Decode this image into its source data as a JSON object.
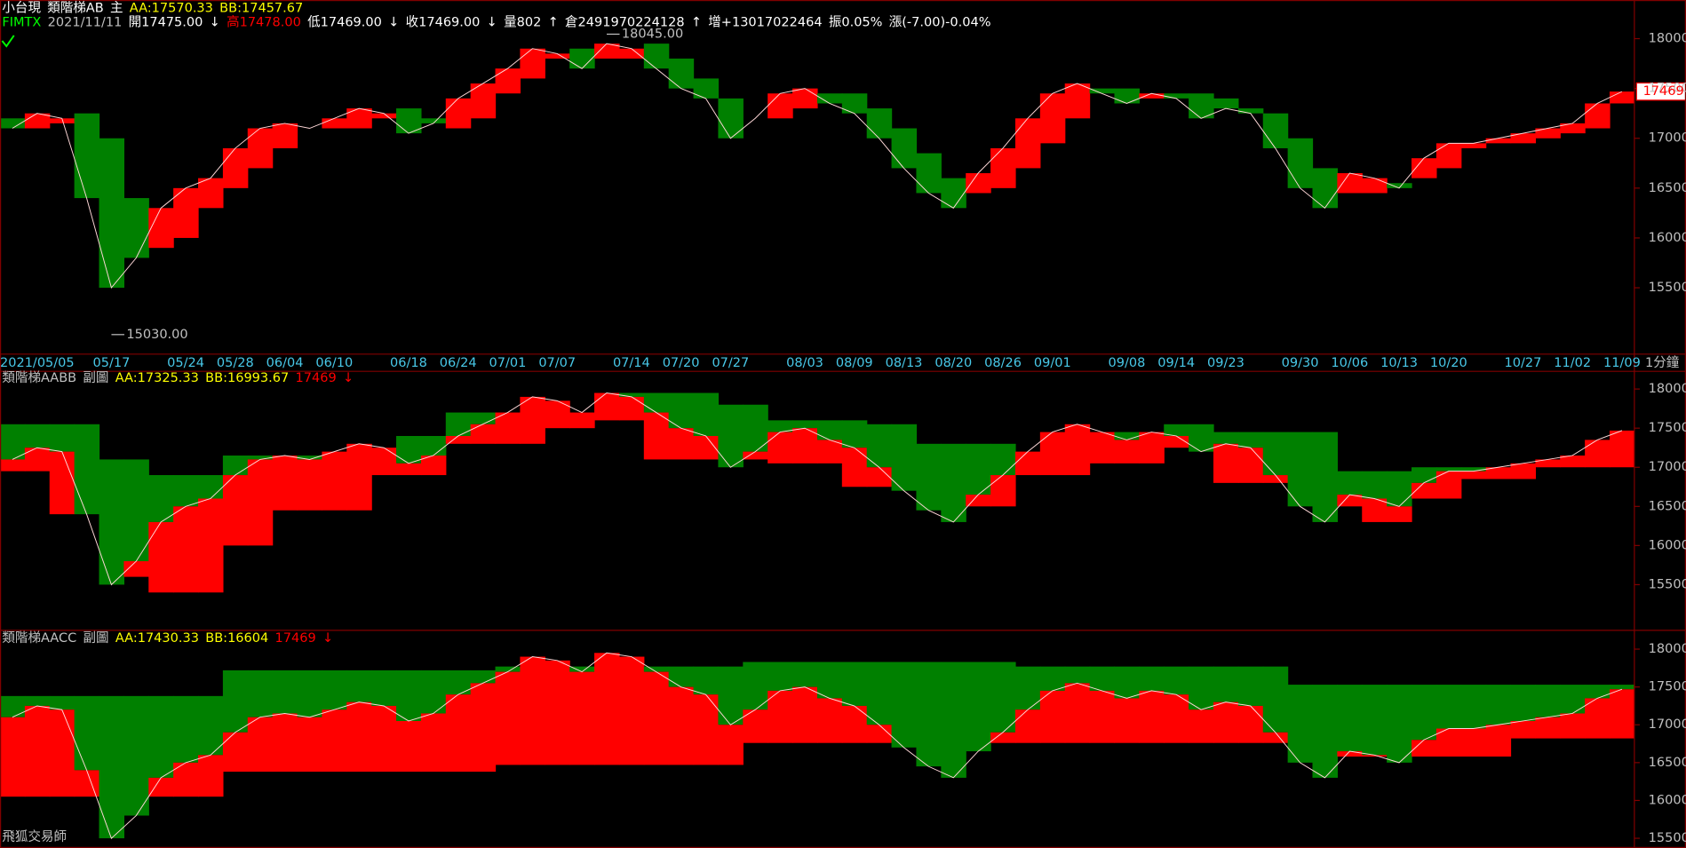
{
  "chart_data": [
    {
      "type": "ladder",
      "header": [
        [
          {
            "text": "小台現",
            "color": "#ffffff"
          },
          {
            "text": "類階梯AB",
            "color": "#ffffff"
          },
          {
            "text": "主",
            "color": "#ffffff"
          },
          {
            "text": "AA:17570.33",
            "color": "#ffff00"
          },
          {
            "text": "BB:17457.67",
            "color": "#ffff00"
          }
        ],
        [
          {
            "text": "FIMTX",
            "color": "#00ff00"
          },
          {
            "text": "2021/11/11",
            "color": "#c0c0c0"
          },
          {
            "text": "開17475.00",
            "color": "#ffffff"
          },
          {
            "text": "↓",
            "color": "#ffffff"
          },
          {
            "text": "高17478.00",
            "color": "#ff0000"
          },
          {
            "text": "低17469.00",
            "color": "#ffffff"
          },
          {
            "text": "↓",
            "color": "#ffffff"
          },
          {
            "text": "收17469.00",
            "color": "#ffffff"
          },
          {
            "text": "↓",
            "color": "#ffffff"
          },
          {
            "text": "量802",
            "color": "#ffffff"
          },
          {
            "text": "↑",
            "color": "#ffffff"
          },
          {
            "text": "倉2491970224128",
            "color": "#ffffff"
          },
          {
            "text": "↑",
            "color": "#ffffff"
          },
          {
            "text": "增+13017022464",
            "color": "#ffffff"
          },
          {
            "text": "振0.05%",
            "color": "#ffffff"
          },
          {
            "text": "漲(-7.00)-0.04%",
            "color": "#ffffff"
          }
        ]
      ],
      "categories": [
        null,
        "2021/05/05",
        null,
        null,
        "05/17",
        null,
        null,
        "05/24",
        null,
        "05/28",
        null,
        "06/04",
        null,
        "06/10",
        null,
        null,
        "06/18",
        null,
        "06/24",
        null,
        "07/01",
        null,
        "07/07",
        null,
        null,
        "07/14",
        null,
        "07/20",
        null,
        "07/27",
        null,
        null,
        "08/03",
        null,
        "08/09",
        null,
        "08/13",
        null,
        "08/20",
        null,
        "08/26",
        null,
        "09/01",
        null,
        null,
        "09/08",
        null,
        "09/14",
        null,
        "09/23",
        null,
        null,
        "09/30",
        null,
        "10/06",
        null,
        "10/13",
        null,
        "10/20",
        null,
        null,
        "10/27",
        null,
        "11/02",
        null,
        "11/09"
      ],
      "timeframe": "1分鐘",
      "close": [
        17100,
        17250,
        17200,
        16400,
        15500,
        15800,
        16300,
        16500,
        16600,
        16900,
        17100,
        17150,
        17100,
        17200,
        17300,
        17250,
        17050,
        17150,
        17400,
        17550,
        17700,
        17900,
        17850,
        17700,
        17950,
        17900,
        17700,
        17500,
        17400,
        17000,
        17200,
        17450,
        17500,
        17350,
        17250,
        17000,
        16700,
        16450,
        16300,
        16650,
        16900,
        17200,
        17450,
        17550,
        17450,
        17350,
        17450,
        17400,
        17200,
        17300,
        17250,
        16900,
        16500,
        16300,
        16650,
        16600,
        16500,
        16800,
        16950,
        16950,
        17000,
        17050,
        17100,
        17150,
        17350,
        17469
      ],
      "ladder": [
        17200,
        17100,
        17150,
        17250,
        17000,
        16400,
        15900,
        16000,
        16300,
        16500,
        16700,
        16900,
        17100,
        17100,
        17100,
        17200,
        17300,
        17200,
        17100,
        17200,
        17450,
        17600,
        17800,
        17900,
        17800,
        17800,
        17950,
        17800,
        17600,
        17400,
        17200,
        17200,
        17300,
        17450,
        17450,
        17300,
        17100,
        16850,
        16600,
        16450,
        16500,
        16700,
        16950,
        17200,
        17500,
        17500,
        17400,
        17450,
        17450,
        17400,
        17300,
        17250,
        17000,
        16700,
        16450,
        16450,
        16550,
        16600,
        16700,
        16900,
        16950,
        16950,
        17000,
        17050,
        17100,
        17350
      ],
      "annotations": [
        {
          "value": 18045,
          "label": "18045.00"
        },
        {
          "value": 15030,
          "label": "15030.00"
        }
      ],
      "last": 17469,
      "ylim": [
        14850,
        18280
      ],
      "yticks": [
        15500,
        16000,
        16500,
        17000,
        17500,
        18000
      ],
      "colors": {
        "up": "#ff0000",
        "down": "#008000"
      }
    },
    {
      "type": "band",
      "header": [
        [
          {
            "text": "類階梯AABB",
            "color": "#c0c0c0"
          },
          {
            "text": "副圖",
            "color": "#c0c0c0"
          },
          {
            "text": "AA:17325.33",
            "color": "#ffff00"
          },
          {
            "text": "BB:16993.67",
            "color": "#ffff00"
          },
          {
            "text": "17469",
            "color": "#ff0000"
          },
          {
            "text": "↓",
            "color": "#ff0000"
          }
        ]
      ],
      "upper": [
        17550,
        17550,
        17550,
        17550,
        17100,
        17100,
        16900,
        16900,
        16900,
        17150,
        17150,
        17150,
        17150,
        17150,
        17150,
        17150,
        17400,
        17400,
        17700,
        17700,
        17700,
        17700,
        17700,
        17700,
        17950,
        17950,
        17950,
        17950,
        17950,
        17800,
        17800,
        17600,
        17600,
        17600,
        17600,
        17550,
        17550,
        17300,
        17300,
        17300,
        17300,
        17200,
        17200,
        17200,
        17450,
        17450,
        17450,
        17550,
        17550,
        17450,
        17450,
        17450,
        17450,
        17450,
        16950,
        16950,
        16950,
        17000,
        17000,
        17000,
        17000,
        17000,
        17000,
        17000,
        17000,
        17000
      ],
      "lower": [
        16950,
        16950,
        16400,
        16400,
        15600,
        15600,
        15400,
        15400,
        15400,
        16000,
        16000,
        16450,
        16450,
        16450,
        16450,
        16900,
        16900,
        16900,
        17300,
        17300,
        17300,
        17300,
        17500,
        17500,
        17600,
        17600,
        17100,
        17100,
        17100,
        17100,
        17100,
        17050,
        17050,
        17050,
        16750,
        16750,
        16750,
        16500,
        16500,
        16500,
        16500,
        16900,
        16900,
        16900,
        17050,
        17050,
        17050,
        17250,
        17250,
        16800,
        16800,
        16800,
        16500,
        16500,
        16500,
        16300,
        16300,
        16600,
        16600,
        16850,
        16850,
        16850,
        17000,
        17000,
        17000,
        17000
      ],
      "ylim": [
        14964,
        18233
      ],
      "yticks": [
        15500,
        16000,
        16500,
        17000,
        17500,
        18000
      ],
      "colors": {
        "up": "#ff0000",
        "down": "#008000"
      }
    },
    {
      "type": "band",
      "header": [
        [
          {
            "text": "類階梯AACC",
            "color": "#c0c0c0"
          },
          {
            "text": "副圖",
            "color": "#c0c0c0"
          },
          {
            "text": "AA:17430.33",
            "color": "#ffff00"
          },
          {
            "text": "BB:16604",
            "color": "#ffff00"
          },
          {
            "text": "17469",
            "color": "#ff0000"
          },
          {
            "text": "↓",
            "color": "#ff0000"
          }
        ]
      ],
      "upper": [
        17380,
        17380,
        17380,
        17380,
        17380,
        17380,
        17380,
        17380,
        17380,
        17720,
        17720,
        17720,
        17720,
        17720,
        17720,
        17720,
        17720,
        17720,
        17720,
        17720,
        17770,
        17770,
        17770,
        17770,
        17770,
        17770,
        17770,
        17770,
        17770,
        17770,
        17830,
        17830,
        17830,
        17830,
        17830,
        17830,
        17830,
        17830,
        17830,
        17830,
        17830,
        17770,
        17770,
        17770,
        17770,
        17770,
        17770,
        17770,
        17770,
        17770,
        17770,
        17770,
        17530,
        17530,
        17530,
        17530,
        17530,
        17530,
        17530,
        17530,
        17530,
        17530,
        17530,
        17530,
        17530,
        17530
      ],
      "lower": [
        16050,
        16050,
        16050,
        16050,
        16050,
        16050,
        16050,
        16050,
        16050,
        16380,
        16380,
        16380,
        16380,
        16380,
        16380,
        16380,
        16380,
        16380,
        16380,
        16380,
        16470,
        16470,
        16470,
        16470,
        16470,
        16470,
        16470,
        16470,
        16470,
        16470,
        16760,
        16760,
        16760,
        16760,
        16760,
        16760,
        16760,
        16760,
        16760,
        16760,
        16760,
        16760,
        16760,
        16760,
        16760,
        16760,
        16760,
        16760,
        16760,
        16760,
        16760,
        16760,
        16580,
        16580,
        16580,
        16580,
        16580,
        16580,
        16580,
        16580,
        16580,
        16820,
        16820,
        16820,
        16820,
        16820
      ],
      "ylim": [
        15400,
        18241
      ],
      "yticks": [
        15500,
        16000,
        16500,
        17000,
        17500,
        18000
      ],
      "colors": {
        "up": "#ff0000",
        "down": "#008000"
      }
    }
  ],
  "footer": "飛狐交易師"
}
